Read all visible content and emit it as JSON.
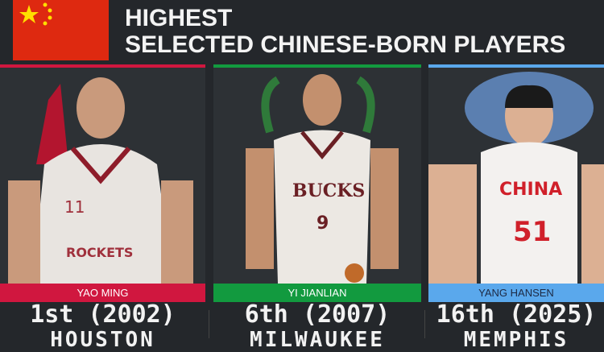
{
  "title": "HIGHEST SELECTED CHINESE-BORN PLAYERS",
  "flag": {
    "name": "china-flag-icon",
    "colors": {
      "field": "#de2910",
      "stars": "#ffde00"
    }
  },
  "players": [
    {
      "name": "YAO MING",
      "pick": "1st (2002)",
      "team": "HOUSTON",
      "color": "#d0173f",
      "text_color": "#ffffff",
      "jersey_number": "11",
      "jersey_text": "ROCKETS"
    },
    {
      "name": "YI JIANLIAN",
      "pick": "6th (2007)",
      "team": "MILWAUKEE",
      "color": "#129a3f",
      "text_color": "#ffffff",
      "jersey_number": "9",
      "jersey_text": "BUCKS"
    },
    {
      "name": "YANG HANSEN",
      "pick": "16th (2025)",
      "team": "MEMPHIS",
      "color": "#5aa8ec",
      "text_color": "#1d2a44",
      "jersey_number": "51",
      "jersey_text": "CHINA"
    }
  ]
}
